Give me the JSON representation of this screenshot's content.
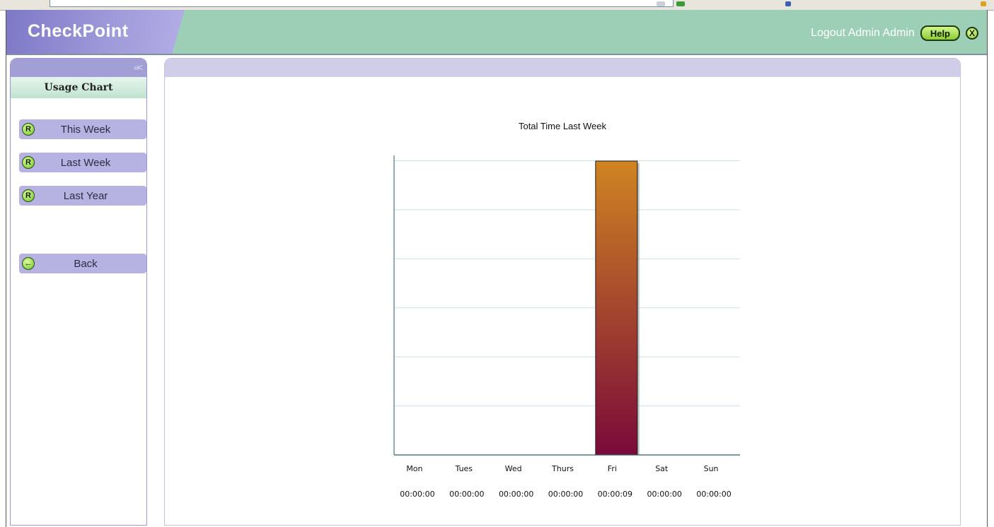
{
  "app": {
    "brand": "CheckPoint",
    "header_text": "Logout Admin Admin",
    "help_label": "Help",
    "close_label": "X"
  },
  "colors": {
    "header_bg": "#9ccfb5",
    "brand_tab": "#9d98d8",
    "sidebar_button": "#b6b3e2",
    "bar_top": "#cf8422",
    "bar_bottom": "#7a0a3a",
    "axis": "#2d5a6a"
  },
  "sidebar": {
    "collapse_icon": "double-chevron-left-icon",
    "title": "Usage Chart",
    "items": [
      {
        "label": "This Week",
        "icon": "R"
      },
      {
        "label": "Last Week",
        "icon": "R"
      },
      {
        "label": "Last Year",
        "icon": "R"
      }
    ],
    "back": {
      "label": "Back",
      "icon": "arrow-left-icon"
    }
  },
  "chart_data": {
    "type": "bar",
    "title": "Total Time Last Week",
    "categories": [
      "Mon",
      "Tues",
      "Wed",
      "Thurs",
      "Fri",
      "Sat",
      "Sun"
    ],
    "labels": [
      "00:00:00",
      "00:00:00",
      "00:00:00",
      "00:00:00",
      "00:00:09",
      "00:00:00",
      "00:00:00"
    ],
    "values": [
      0,
      0,
      0,
      0,
      9,
      0,
      0
    ],
    "unit": "seconds",
    "grid": true,
    "legend": "none"
  }
}
